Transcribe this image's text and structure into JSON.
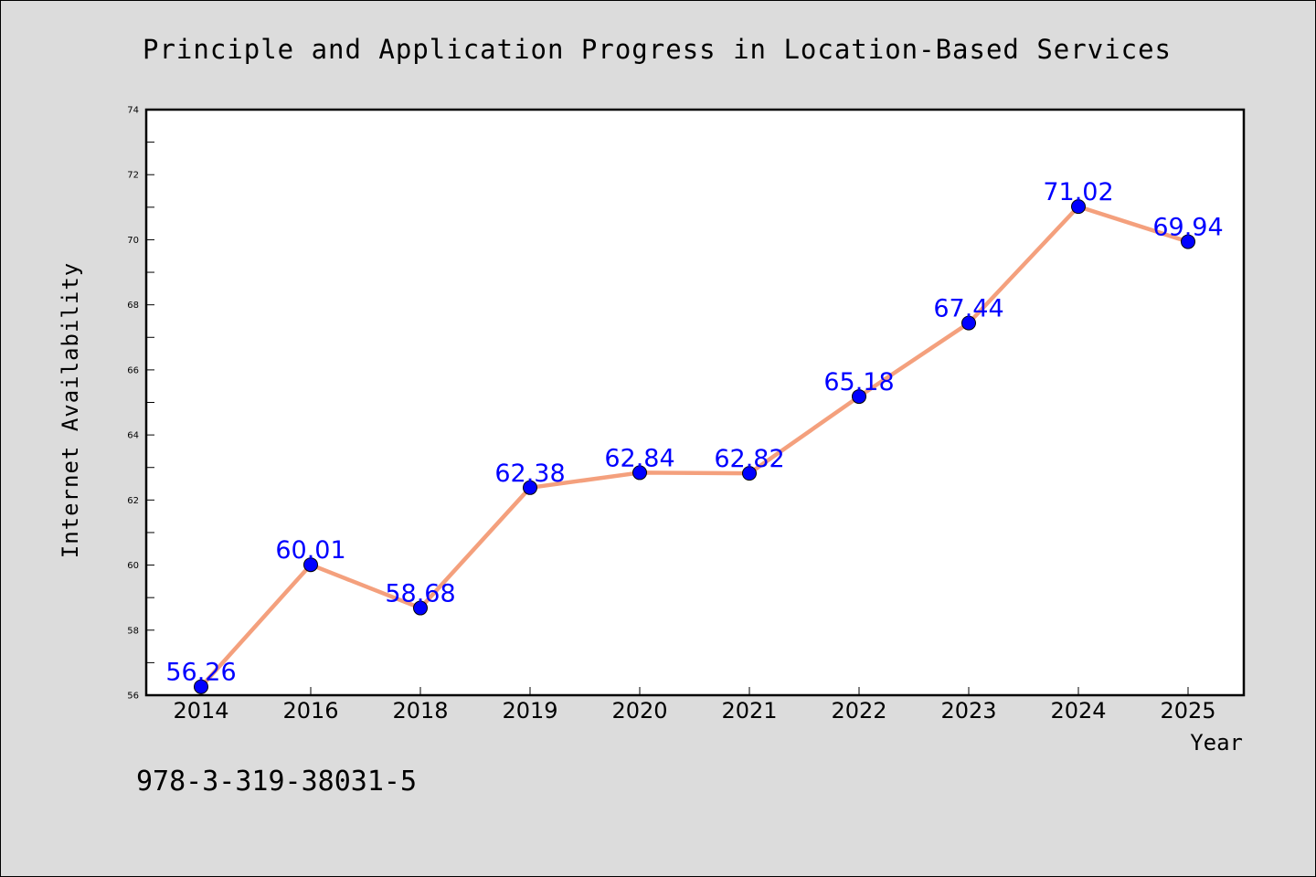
{
  "chart_data": {
    "type": "line",
    "title": "Principle and Application Progress in Location-Based Services",
    "xlabel": "Year",
    "ylabel": "Internet Availability",
    "categories": [
      "2014",
      "2016",
      "2018",
      "2019",
      "2020",
      "2021",
      "2022",
      "2023",
      "2024",
      "2025"
    ],
    "series": [
      {
        "values": [
          56.26,
          60.01,
          58.68,
          62.38,
          62.84,
          62.82,
          65.18,
          67.44,
          71.02,
          69.94
        ],
        "labels": [
          "56.26",
          "60.01",
          "58.68",
          "62.38",
          "62.84",
          "62.82",
          "65.18",
          "67.44",
          "71.02",
          "69.94"
        ],
        "line_color": "#f4a07d",
        "marker_color": "#0000ff",
        "label_color": "#0000ff"
      }
    ],
    "ylim": [
      56,
      74
    ],
    "yticks": [
      "56",
      "58",
      "60",
      "62",
      "64",
      "66",
      "68",
      "70",
      "72",
      "74"
    ],
    "grid": false,
    "legend": "none",
    "footnote": "978-3-319-38031-5",
    "colors": {
      "background": "#dcdcdc",
      "plot_background": "#ffffff",
      "axis": "#000000"
    }
  }
}
